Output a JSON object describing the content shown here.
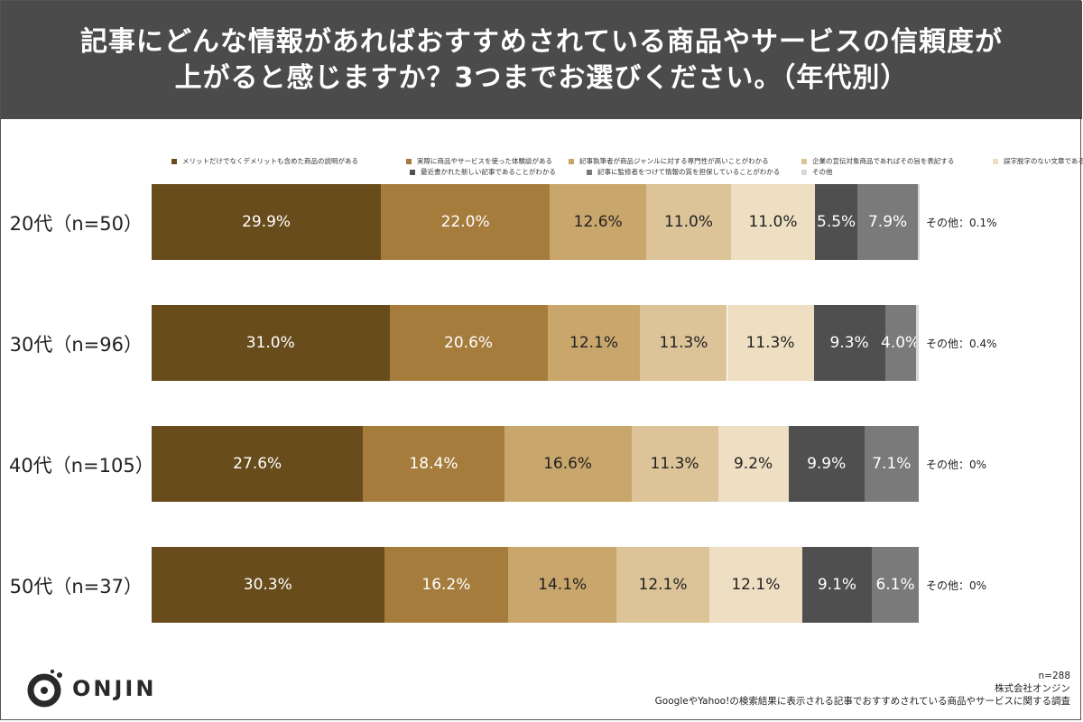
{
  "title_lines": [
    "記事にどんな情報があればおすすめされている商品やサービスの信頼度が",
    "上がると感じますか？3つまでお選びください。（年代別）"
  ],
  "brand": "ONJIN",
  "footer": {
    "n": "n=288",
    "company": "株式会社オンジン",
    "survey": "GoogleやYahoo!の検索結果に表示される記事でおすすめされている商品やサービスに関する調査"
  },
  "chart_data": {
    "type": "bar",
    "orientation": "horizontal",
    "stacked": true,
    "normalized_percent": true,
    "legend_placement": "top",
    "categories": [
      "20代（n=50）",
      "30代（n=96）",
      "40代（n=105）",
      "50代（n=37）"
    ],
    "series": [
      {
        "name": "メリットだけでなくデメリットも含めた商品の説明がある",
        "color": "#684c1c",
        "text_color": "#ffffff",
        "values": [
          29.9,
          31.0,
          27.6,
          30.3
        ]
      },
      {
        "name": "実際に商品やサービスを使った体験談がある",
        "color": "#a67c3d",
        "text_color": "#ffffff",
        "values": [
          22.0,
          20.6,
          18.4,
          16.2
        ]
      },
      {
        "name": "記事執筆者が商品ジャンルに対する専門性が高いことがわかる",
        "color": "#c9a66b",
        "text_color": "#222222",
        "values": [
          12.6,
          12.1,
          16.6,
          14.1
        ]
      },
      {
        "name": "企業の宣伝対象商品であればその旨を表記する",
        "color": "#dcc398",
        "text_color": "#222222",
        "values": [
          11.0,
          11.3,
          11.3,
          12.1
        ]
      },
      {
        "name": "誤字脱字のない文章である",
        "color": "#eedfc2",
        "text_color": "#222222",
        "values": [
          11.0,
          11.3,
          9.2,
          12.1
        ]
      },
      {
        "name": "最近書かれた新しい記事であることがわかる",
        "color": "#4f4f4f",
        "text_color": "#ffffff",
        "values": [
          5.5,
          9.3,
          9.9,
          9.1
        ]
      },
      {
        "name": "記事に監修者をつけて情報の質を担保していることがわかる",
        "color": "#7a7a7a",
        "text_color": "#ffffff",
        "values": [
          7.9,
          4.0,
          7.1,
          6.1
        ]
      },
      {
        "name": "その他",
        "color": "#d7d7d7",
        "text_color": "#222222",
        "values": [
          0.1,
          0.4,
          0,
          0
        ]
      }
    ],
    "segment_labels": [
      [
        "29.9%",
        "22.0%",
        "12.6%",
        "11.0%",
        "11.0%",
        "5.5%",
        "7.9%",
        ""
      ],
      [
        "31.0%",
        "20.6%",
        "12.1%",
        "11.3%",
        "11.3%",
        "9.3%",
        "4.0%",
        ""
      ],
      [
        "27.6%",
        "18.4%",
        "16.6%",
        "11.3%",
        "9.2%",
        "9.9%",
        "7.1%",
        ""
      ],
      [
        "30.3%",
        "16.2%",
        "14.1%",
        "12.1%",
        "12.1%",
        "9.1%",
        "6.1%",
        ""
      ]
    ],
    "other_notes": [
      "その他：0.1%",
      "その他：0.4%",
      "その他：0%",
      "その他：0%"
    ]
  }
}
